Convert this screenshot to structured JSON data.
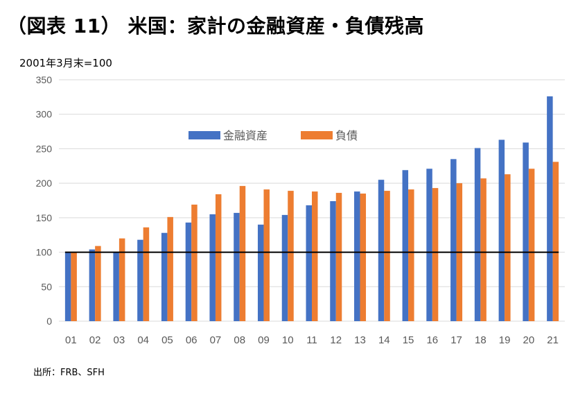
{
  "figure": {
    "title": "（図表 11） 米国：家計の金融資産・負債残高",
    "unit_label": "2001年3月末=100",
    "source": "出所：FRB、SFH"
  },
  "chart_data": {
    "type": "bar",
    "title": "（図表 11） 米国：家計の金融資産・負債残高",
    "ylabel": "2001年3月末=100",
    "xlabel": "",
    "ylim": [
      0,
      350
    ],
    "yticks": [
      0,
      50,
      100,
      150,
      200,
      250,
      300,
      350
    ],
    "grid": true,
    "legend_position": "top-center",
    "reference_line": 100,
    "categories": [
      "01",
      "02",
      "03",
      "04",
      "05",
      "06",
      "07",
      "08",
      "09",
      "10",
      "11",
      "12",
      "13",
      "14",
      "15",
      "16",
      "17",
      "18",
      "19",
      "20",
      "21"
    ],
    "series": [
      {
        "name": "金融資産",
        "color": "#4472C4",
        "values": [
          100,
          104,
          100,
          118,
          128,
          143,
          155,
          157,
          140,
          154,
          168,
          174,
          188,
          205,
          219,
          221,
          235,
          251,
          263,
          259,
          326
        ]
      },
      {
        "name": "負債",
        "color": "#ED7D31",
        "values": [
          100,
          109,
          120,
          136,
          151,
          169,
          184,
          196,
          191,
          189,
          188,
          186,
          185,
          189,
          191,
          193,
          200,
          207,
          213,
          221,
          231
        ]
      }
    ]
  }
}
